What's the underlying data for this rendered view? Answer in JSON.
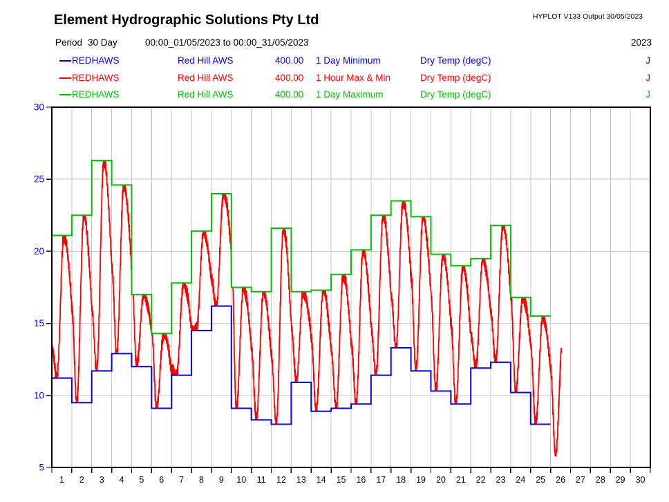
{
  "header": {
    "title": "Element Hydrographic Solutions Pty Ltd",
    "hyplot": "HYPLOT V133  Output 30/05/2023"
  },
  "period": {
    "label": "Period",
    "duration": "30 Day",
    "range": "00:00_01/05/2023 to 00:00_31/05/2023",
    "year": "2023"
  },
  "legend": {
    "rows": [
      {
        "color": "#0000ff",
        "name": "REDHAWS",
        "station": "Red Hill AWS",
        "value": "400.00",
        "description": "1 Day Minimum",
        "unit": "Dry Temp (degC)",
        "quality": "J"
      },
      {
        "color": "#ff0000",
        "name": "REDHAWS",
        "station": "Red Hill AWS",
        "value": "400.00",
        "description": "1 Hour Max & Min",
        "unit": "Dry Temp (degC)",
        "quality": "J"
      },
      {
        "color": "#00c000",
        "name": "REDHAWS",
        "station": "Red Hill AWS",
        "value": "400.00",
        "description": "1 Day Maximum",
        "unit": "Dry Temp (degC)",
        "quality": "J"
      }
    ]
  },
  "chart_data": {
    "type": "line",
    "grid": true,
    "grid_color": "#c6c6c6",
    "axis_color": "#000000",
    "x_axis": {
      "days": 30,
      "tick_labels": [
        "1",
        "2",
        "3",
        "4",
        "5",
        "6",
        "7",
        "8",
        "9",
        "10",
        "11",
        "12",
        "13",
        "14",
        "15",
        "16",
        "17",
        "18",
        "19",
        "20",
        "21",
        "22",
        "23",
        "24",
        "25",
        "26",
        "27",
        "28",
        "29",
        "30"
      ],
      "label_color": "#000000"
    },
    "y_axis": {
      "min": 5,
      "max": 30,
      "ticks": [
        30,
        25,
        20,
        15,
        10,
        5
      ],
      "label_color": "#0000ff"
    },
    "series": [
      {
        "name": "1 Day Minimum",
        "style": "step",
        "color": "#0000ff",
        "values": [
          11.2,
          9.5,
          11.7,
          12.9,
          12.0,
          9.1,
          11.4,
          14.5,
          16.2,
          9.1,
          8.3,
          8.0,
          10.9,
          8.9,
          9.1,
          9.4,
          11.4,
          13.3,
          11.7,
          10.3,
          9.4,
          11.9,
          12.3,
          10.2,
          8.0
        ]
      },
      {
        "name": "1 Hour Max & Min",
        "style": "hourly",
        "color": "#ff0000",
        "start_value": 13.3,
        "end_day": 25.55,
        "partial_day_min": 5.8,
        "partial_day_max": 14.0,
        "min_hour": 6,
        "peak_hour": 14.5
      },
      {
        "name": "1 Day Maximum",
        "style": "step",
        "color": "#00c000",
        "values": [
          21.1,
          22.5,
          26.3,
          24.6,
          17.0,
          14.3,
          17.8,
          21.4,
          24.0,
          17.5,
          17.2,
          21.6,
          17.2,
          17.3,
          18.4,
          20.1,
          22.5,
          23.5,
          22.4,
          19.8,
          19.0,
          19.5,
          21.8,
          16.8,
          15.5
        ]
      }
    ]
  }
}
